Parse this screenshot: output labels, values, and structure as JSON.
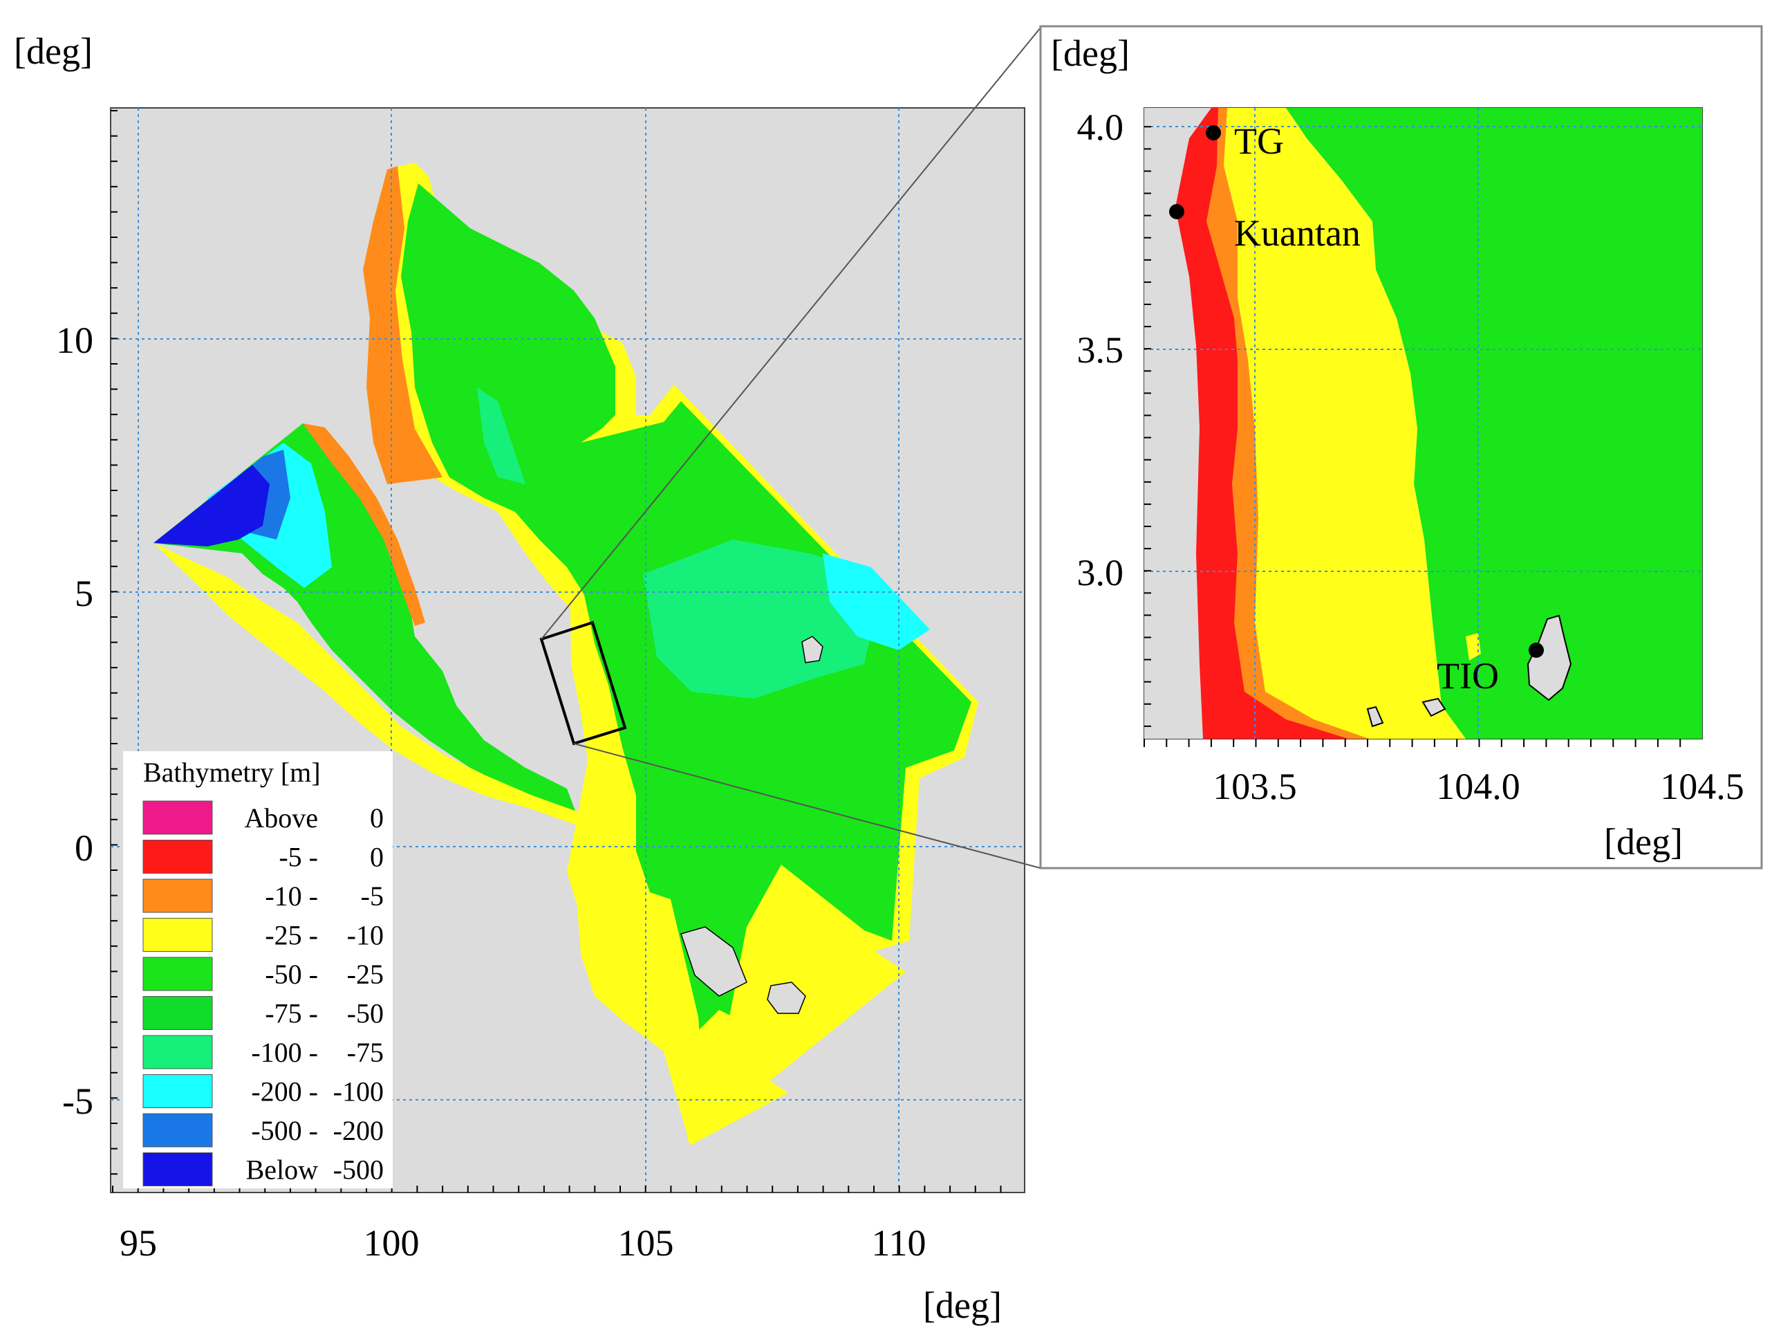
{
  "colors": {
    "land": "#dcdcdc",
    "grid": "#3b8fd8",
    "c_above": "#ee1a8c",
    "c_0_5": "#ff1a1a",
    "c_5_10": "#ff8c1a",
    "c_10_25": "#ffff1a",
    "c_25_50": "#1ae41a",
    "c_50_75": "#11dc2a",
    "c_75_100": "#16f07a",
    "c_100_200": "#1affff",
    "c_200_500": "#1a78e6",
    "c_below_500": "#1414e6"
  },
  "main_map": {
    "unit_top": "[deg]",
    "unit_bottom": "[deg]",
    "x_ticks": [
      "95",
      "100",
      "105",
      "110"
    ],
    "y_ticks": [
      "10",
      "5",
      "0",
      "-5"
    ],
    "x_range": [
      94.5,
      112.5
    ],
    "y_range": [
      -6.7,
      14.7
    ]
  },
  "inset_map": {
    "unit_top": "[deg]",
    "unit_bottom": "[deg]",
    "x_ticks": [
      "103.5",
      "104.0",
      "104.5"
    ],
    "y_ticks": [
      "4.0",
      "3.5",
      "3.0"
    ],
    "labels": {
      "tg": "TG",
      "kuantan": "Kuantan",
      "tio": "TIO"
    }
  },
  "legend": {
    "title": "Bathymetry [m]",
    "items": [
      {
        "from": "Above",
        "to": "0",
        "color_key": "c_above"
      },
      {
        "from": "-5 -",
        "to": "0",
        "color_key": "c_0_5"
      },
      {
        "from": "-10 -",
        "to": "-5",
        "color_key": "c_5_10"
      },
      {
        "from": "-25 -",
        "to": "-10",
        "color_key": "c_10_25"
      },
      {
        "from": "-50 -",
        "to": "-25",
        "color_key": "c_25_50"
      },
      {
        "from": "-75 -",
        "to": "-50",
        "color_key": "c_50_75"
      },
      {
        "from": "-100 -",
        "to": "-75",
        "color_key": "c_75_100"
      },
      {
        "from": "-200 -",
        "to": "-100",
        "color_key": "c_100_200"
      },
      {
        "from": "-500 -",
        "to": "-200",
        "color_key": "c_200_500"
      },
      {
        "from": "Below",
        "to": "-500",
        "color_key": "c_below_500"
      }
    ]
  }
}
